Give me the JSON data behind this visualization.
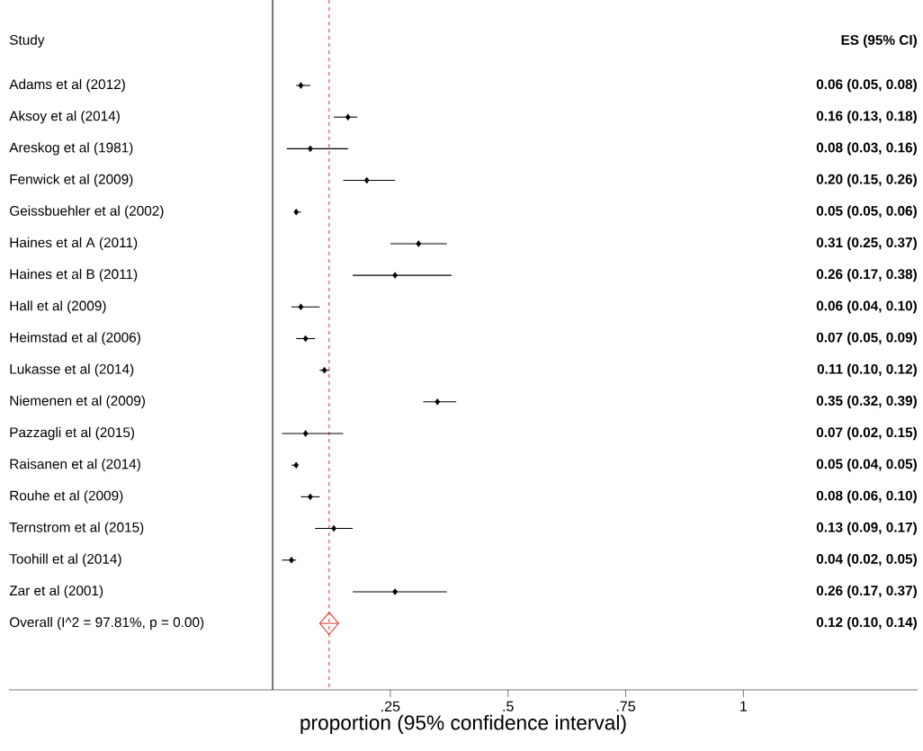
{
  "chart_data": {
    "type": "scatter",
    "orientation": "horizontal",
    "ylabel": "Study",
    "xlabel": "proportion (95% confidence interval)",
    "annotations": [
      "ES (95% CI)"
    ],
    "categories": [
      "Adams et al  (2012)",
      "Aksoy et al  (2014)",
      "Areskog et al  (1981)",
      "Fenwick et al (2009)",
      "Geissbuehler et al  (2002)",
      "Haines et al A (2011)",
      "Haines et al B (2011)",
      "Hall et al (2009)",
      "Heimstad et al (2006)",
      "Lukasse et al (2014)",
      "Niemenen et al  (2009)",
      "Pazzagli et al  (2015)",
      "Raisanen et al  (2014)",
      "Rouhe et al  (2009)",
      "Ternstrom et al  (2015)",
      "Toohill et al  (2014)",
      "Zar et al (2001)",
      "Overall  (I^2 = 97.81%, p = 0.00)"
    ],
    "series": [
      {
        "color": "#000000",
        "marker": "diamond",
        "values": [
          0.06,
          0.16,
          0.08,
          0.2,
          0.05,
          0.31,
          0.26,
          0.06,
          0.07,
          0.11,
          0.35,
          0.07,
          0.05,
          0.08,
          0.13,
          0.04,
          0.26,
          null
        ],
        "errors": [
          [
            0.05,
            0.08
          ],
          [
            0.13,
            0.18
          ],
          [
            0.03,
            0.16
          ],
          [
            0.15,
            0.26
          ],
          [
            0.05,
            0.06
          ],
          [
            0.25,
            0.37
          ],
          [
            0.17,
            0.38
          ],
          [
            0.04,
            0.1
          ],
          [
            0.05,
            0.09
          ],
          [
            0.1,
            0.12
          ],
          [
            0.32,
            0.39
          ],
          [
            0.02,
            0.15
          ],
          [
            0.04,
            0.05
          ],
          [
            0.06,
            0.1
          ],
          [
            0.09,
            0.17
          ],
          [
            0.02,
            0.05
          ],
          [
            0.17,
            0.37
          ],
          null
        ]
      },
      {
        "color": "#e03c3c",
        "marker": "diamond",
        "values": [
          null,
          null,
          null,
          null,
          null,
          null,
          null,
          null,
          null,
          null,
          null,
          null,
          null,
          null,
          null,
          null,
          null,
          0.12
        ],
        "errors": [
          null,
          null,
          null,
          null,
          null,
          null,
          null,
          null,
          null,
          null,
          null,
          null,
          null,
          null,
          null,
          null,
          null,
          [
            0.1,
            0.14
          ]
        ]
      }
    ],
    "value_labels": [
      "0.06 (0.05, 0.08)",
      "0.16 (0.13, 0.18)",
      "0.08 (0.03, 0.16)",
      "0.20 (0.15, 0.26)",
      "0.05 (0.05, 0.06)",
      "0.31 (0.25, 0.37)",
      "0.26 (0.17, 0.38)",
      "0.06 (0.04, 0.10)",
      "0.07 (0.05, 0.09)",
      "0.11 (0.10, 0.12)",
      "0.35 (0.32, 0.39)",
      "0.07 (0.02, 0.15)",
      "0.05 (0.04, 0.05)",
      "0.08 (0.06, 0.10)",
      "0.13 (0.09, 0.17)",
      "0.04 (0.02, 0.05)",
      "0.26 (0.17, 0.37)",
      "0.12 (0.10, 0.14)"
    ],
    "xlim": [
      -0.56,
      1.37
    ],
    "xticks": [
      {
        "value": 0.25,
        "label": ".25"
      },
      {
        "value": 0.5,
        "label": ".5"
      },
      {
        "value": 0.75,
        "label": ".75"
      },
      {
        "value": 1,
        "label": "1"
      }
    ],
    "ref_lines": [
      {
        "axis": "x",
        "value": 0,
        "color": "#000000",
        "line_style": "solid"
      },
      {
        "axis": "x",
        "value": 0.12,
        "color": "#e03c3c",
        "line_style": "dashed"
      }
    ]
  }
}
